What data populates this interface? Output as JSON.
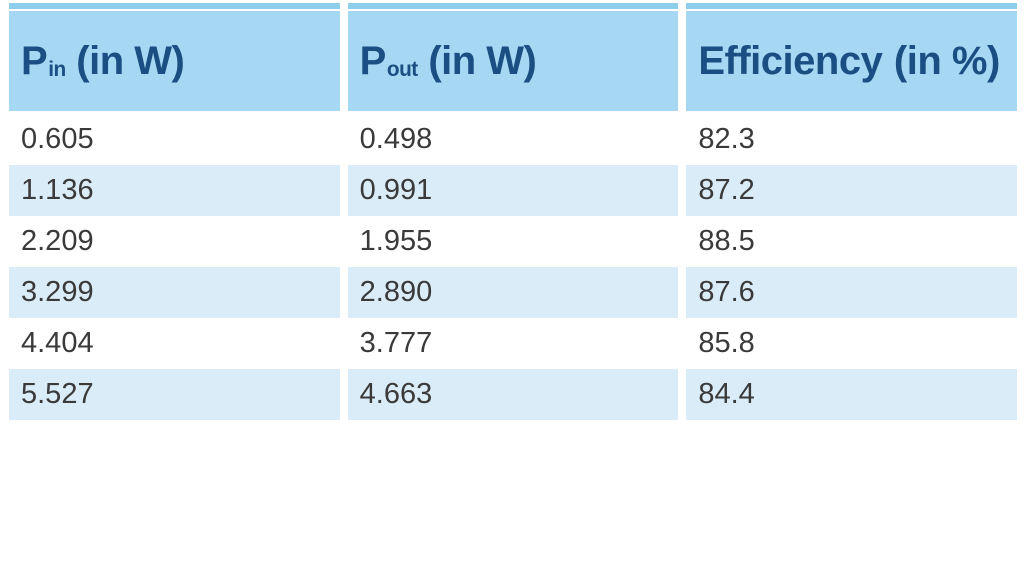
{
  "table": {
    "headers": [
      {
        "pre": "P",
        "sub": "in",
        "post": " (in W)"
      },
      {
        "pre": "P",
        "sub": "out",
        "post": " (in W)"
      },
      {
        "pre": "Efficiency",
        "sub": "",
        "post": " (in %)"
      }
    ],
    "rows": [
      {
        "cells": [
          "0.605",
          "0.498",
          "82.3"
        ]
      },
      {
        "cells": [
          "1.136",
          "0.991",
          "87.2"
        ]
      },
      {
        "cells": [
          "2.209",
          "1.955",
          "88.5"
        ]
      },
      {
        "cells": [
          "3.299",
          "2.890",
          "87.6"
        ]
      },
      {
        "cells": [
          "4.404",
          "3.777",
          "85.8"
        ]
      },
      {
        "cells": [
          "5.527",
          "4.663",
          "84.4"
        ]
      }
    ],
    "colors": {
      "top_strip": "#8cceec",
      "header_bg": "#a6d8f3",
      "header_text": "#1b4e82",
      "row_alt_bg": "#d9ecf8",
      "cell_text": "#3a3a3a"
    }
  },
  "chart_data": {
    "type": "table",
    "title": "",
    "columns": [
      "P_in (in W)",
      "P_out (in W)",
      "Efficiency (in %)"
    ],
    "rows": [
      [
        0.605,
        0.498,
        82.3
      ],
      [
        1.136,
        0.991,
        87.2
      ],
      [
        2.209,
        1.955,
        88.5
      ],
      [
        3.299,
        2.89,
        87.6
      ],
      [
        4.404,
        3.777,
        85.8
      ],
      [
        5.527,
        4.663,
        84.4
      ]
    ]
  }
}
